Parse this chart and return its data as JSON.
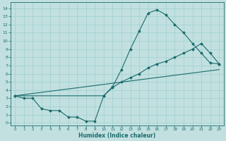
{
  "title": "",
  "xlabel": "Humidex (Indice chaleur)",
  "bg_color": "#c2e0e0",
  "grid_color": "#9fcfcf",
  "line_color": "#1a6b6b",
  "xlim": [
    -0.5,
    23.5
  ],
  "ylim": [
    -0.3,
    14.7
  ],
  "xticks": [
    0,
    1,
    2,
    3,
    4,
    5,
    6,
    7,
    8,
    9,
    10,
    11,
    12,
    13,
    14,
    15,
    16,
    17,
    18,
    19,
    20,
    21,
    22,
    23
  ],
  "yticks": [
    0,
    1,
    2,
    3,
    4,
    5,
    6,
    7,
    8,
    9,
    10,
    11,
    12,
    13,
    14
  ],
  "line1_x": [
    0,
    1,
    2,
    3,
    4,
    5,
    6,
    7,
    8,
    9,
    10,
    11,
    12,
    13,
    14,
    15,
    16,
    17,
    18,
    19,
    20,
    21,
    22,
    23
  ],
  "line1_y": [
    3.3,
    3.0,
    3.0,
    1.7,
    1.5,
    1.5,
    0.7,
    0.7,
    0.2,
    0.2,
    3.3,
    4.4,
    6.5,
    9.0,
    11.2,
    13.4,
    13.8,
    13.2,
    12.0,
    11.0,
    9.7,
    8.5,
    7.3,
    7.2
  ],
  "line2_x": [
    0,
    10,
    11,
    12,
    13,
    14,
    15,
    16,
    17,
    18,
    19,
    20,
    21,
    22,
    23
  ],
  "line2_y": [
    3.3,
    3.3,
    4.3,
    5.0,
    5.5,
    6.0,
    6.7,
    7.2,
    7.5,
    8.0,
    8.5,
    9.0,
    9.7,
    8.5,
    7.2
  ],
  "line3_x": [
    0,
    23
  ],
  "line3_y": [
    3.3,
    6.5
  ],
  "xlabel_fontsize": 5.5,
  "tick_fontsize_x": 4.0,
  "tick_fontsize_y": 4.5
}
